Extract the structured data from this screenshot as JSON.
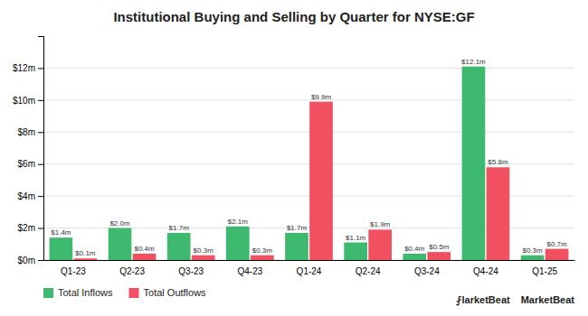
{
  "chart_data": {
    "type": "bar",
    "title": "Institutional Buying and Selling by Quarter for NYSE:GF",
    "categories": [
      "Q1-23",
      "Q2-23",
      "Q3-23",
      "Q4-23",
      "Q1-24",
      "Q2-24",
      "Q3-24",
      "Q4-24",
      "Q1-25"
    ],
    "series": [
      {
        "name": "Total Inflows",
        "color": "#3dba6f",
        "values": [
          1.4,
          2.0,
          1.7,
          2.1,
          1.7,
          1.1,
          0.4,
          12.1,
          0.3
        ],
        "value_labels": [
          "$1.4m",
          "$2.0m",
          "$1.7m",
          "$2.1m",
          "$1.7m",
          "$1.1m",
          "$0.4m",
          "$12.1m",
          "$0.3m"
        ]
      },
      {
        "name": "Total Outflows",
        "color": "#f05060",
        "values": [
          0.1,
          0.4,
          0.3,
          0.3,
          9.9,
          1.9,
          0.5,
          5.8,
          0.7
        ],
        "value_labels": [
          "$0.1m",
          "$0.4m",
          "$0.3m",
          "$0.3m",
          "$9.9m",
          "$1.9m",
          "$0.5m",
          "$5.8m",
          "$0.7m"
        ]
      }
    ],
    "ylim": [
      0,
      14.0
    ],
    "yticks": [
      {
        "value": 0,
        "label": "$0m"
      },
      {
        "value": 2,
        "label": "$2m"
      },
      {
        "value": 4,
        "label": "$4m"
      },
      {
        "value": 6,
        "label": "$6m"
      },
      {
        "value": 8,
        "label": "$8m"
      },
      {
        "value": 10,
        "label": "$10m"
      },
      {
        "value": 12,
        "label": "$12m"
      }
    ],
    "grid": true,
    "data_labels": true,
    "legend": "bottom",
    "annotations": [
      "⨏larketBeat",
      "MarketBeat"
    ]
  }
}
